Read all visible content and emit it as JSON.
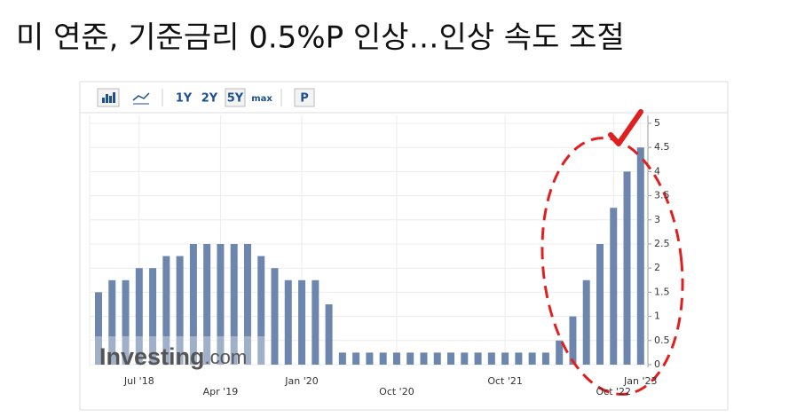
{
  "title": "미 연준, 기준금리 0.5%P 인상…인상 속도 조절",
  "toolbar": [
    "1Y",
    "2Y",
    "5Y",
    "max",
    "P"
  ],
  "watermark": {
    "brand": "Investing",
    "suffix": ".com"
  },
  "chart_data": {
    "type": "bar",
    "categories": [
      null,
      null,
      null,
      "Jul '18",
      null,
      null,
      null,
      null,
      null,
      "Apr '19",
      null,
      null,
      null,
      null,
      null,
      "Jan '20",
      null,
      null,
      null,
      null,
      null,
      null,
      "Oct '20",
      null,
      null,
      null,
      null,
      null,
      null,
      null,
      "Oct '21",
      null,
      null,
      null,
      null,
      null,
      null,
      null,
      "Oct '22",
      null,
      "Jan '23"
    ],
    "values": [
      1.5,
      1.75,
      1.75,
      2,
      2,
      2.25,
      2.25,
      2.5,
      2.5,
      2.5,
      2.5,
      2.5,
      2.25,
      2,
      1.75,
      1.75,
      1.75,
      1.25,
      0.25,
      0.25,
      0.25,
      0.25,
      0.25,
      0.25,
      0.25,
      0.25,
      0.25,
      0.25,
      0.25,
      0.25,
      0.25,
      0.25,
      0.25,
      0.25,
      0.5,
      1,
      1.75,
      2.5,
      3.25,
      4,
      4.5
    ],
    "color": "#6d86ad",
    "ylim": [
      0,
      5
    ],
    "yticks": [
      0,
      0.5,
      1,
      1.5,
      2,
      2.5,
      3,
      3.5,
      4,
      4.5,
      5
    ],
    "grid": true
  }
}
